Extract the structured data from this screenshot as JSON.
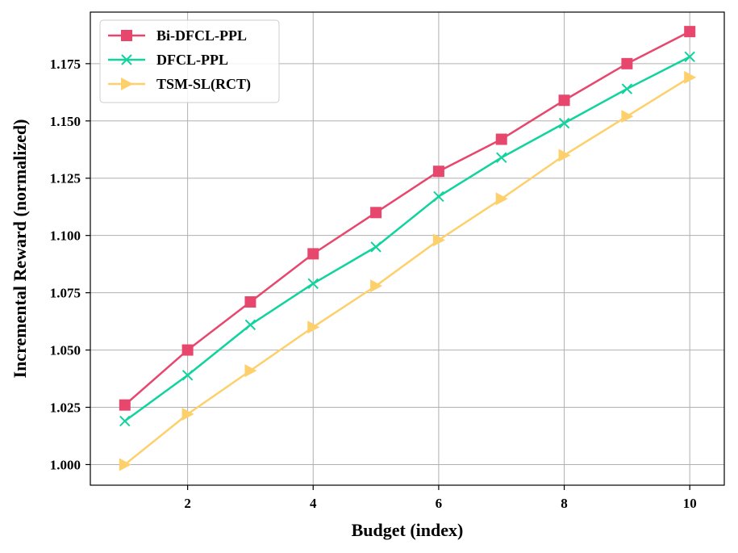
{
  "chart_data": {
    "type": "line",
    "title": "",
    "xlabel": "Budget (index)",
    "ylabel": "Incremental Reward (normalized)",
    "xlim": [
      0.45,
      10.55
    ],
    "ylim": [
      0.991,
      1.1975
    ],
    "x_ticks": [
      2,
      4,
      6,
      8,
      10
    ],
    "y_ticks": [
      1.0,
      1.025,
      1.05,
      1.075,
      1.1,
      1.125,
      1.15,
      1.175
    ],
    "grid": true,
    "legend_position": "upper-left",
    "x": [
      1,
      2,
      3,
      4,
      5,
      6,
      7,
      8,
      9,
      10
    ],
    "series": [
      {
        "name": "Bi-DFCL-PPL",
        "color": "#e8476d",
        "marker": "square",
        "values": [
          1.026,
          1.05,
          1.071,
          1.092,
          1.11,
          1.128,
          1.142,
          1.159,
          1.175,
          1.189
        ]
      },
      {
        "name": "DFCL-PPL",
        "color": "#10d39d",
        "marker": "x",
        "values": [
          1.019,
          1.039,
          1.061,
          1.079,
          1.095,
          1.117,
          1.134,
          1.149,
          1.164,
          1.178
        ]
      },
      {
        "name": "TSM-SL(RCT)",
        "color": "#fdd06b",
        "marker": "triangle-right",
        "values": [
          1.0,
          1.022,
          1.041,
          1.06,
          1.078,
          1.098,
          1.116,
          1.135,
          1.152,
          1.169
        ]
      }
    ]
  }
}
